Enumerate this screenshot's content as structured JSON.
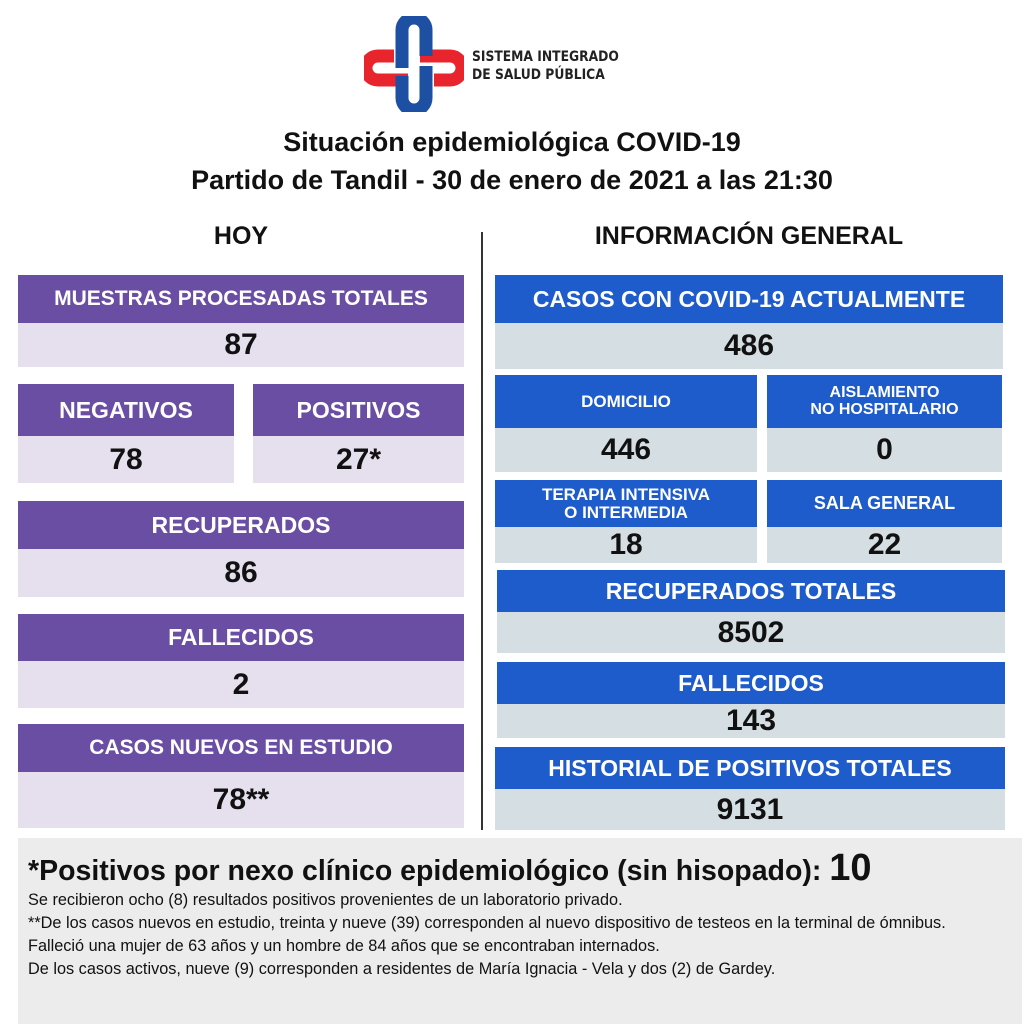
{
  "logo": {
    "text_line1": "SISTEMA INTEGRADO",
    "text_line2": "DE SALUD PÚBLICA",
    "colors": {
      "red": "#e8242c",
      "blue": "#1d4fa3"
    }
  },
  "title_line1": "Situación epidemiológica COVID-19",
  "title_line2": "Partido de Tandil - 30 de enero de 2021 a las 21:30",
  "hoy": {
    "heading": "HOY",
    "muestras": {
      "label": "MUESTRAS PROCESADAS TOTALES",
      "value": "87"
    },
    "negativos": {
      "label": "NEGATIVOS",
      "value": "78"
    },
    "positivos": {
      "label": "POSITIVOS",
      "value": "27*"
    },
    "recuperados": {
      "label": "RECUPERADOS",
      "value": "86"
    },
    "fallecidos": {
      "label": "FALLECIDOS",
      "value": "2"
    },
    "casos_nuevos": {
      "label": "CASOS NUEVOS EN ESTUDIO",
      "value": "78**"
    }
  },
  "general": {
    "heading": "INFORMACIÓN GENERAL",
    "casos_actuales": {
      "label": "CASOS CON COVID-19 ACTUALMENTE",
      "value": "486"
    },
    "domicilio": {
      "label": "DOMICILIO",
      "value": "446"
    },
    "aislamiento": {
      "label1": "AISLAMIENTO",
      "label2": "NO HOSPITALARIO",
      "value": "0"
    },
    "terapia": {
      "label1": "TERAPIA INTENSIVA",
      "label2": "O INTERMEDIA",
      "value": "18"
    },
    "sala": {
      "label": "SALA GENERAL",
      "value": "22"
    },
    "recuperados_totales": {
      "label": "RECUPERADOS TOTALES",
      "value": "8502"
    },
    "fallecidos": {
      "label": "FALLECIDOS",
      "value": "143"
    },
    "historial": {
      "label": "HISTORIAL DE POSITIVOS TOTALES",
      "value": "9131"
    }
  },
  "footer": {
    "headline": "*Positivos por nexo clínico epidemiológico (sin hisopado): ",
    "headline_value": "10",
    "notes": [
      "Se recibieron ocho (8) resultados positivos provenientes de un laboratorio privado.",
      "**De los casos nuevos en estudio, treinta y nueve (39) corresponden al nuevo dispositivo de testeos en la terminal de ómnibus.",
      "Falleció una mujer de 63 años y un hombre de 84 años  que se encontraban internados.",
      "De los casos activos, nueve (9) corresponden a residentes de María Ignacia - Vela y dos (2) de Gardey."
    ]
  },
  "colors": {
    "purple": "#6a4ea3",
    "purple_light": "#e6dfee",
    "blue": "#1e5ccb",
    "blue_light": "#d5dfe3"
  }
}
